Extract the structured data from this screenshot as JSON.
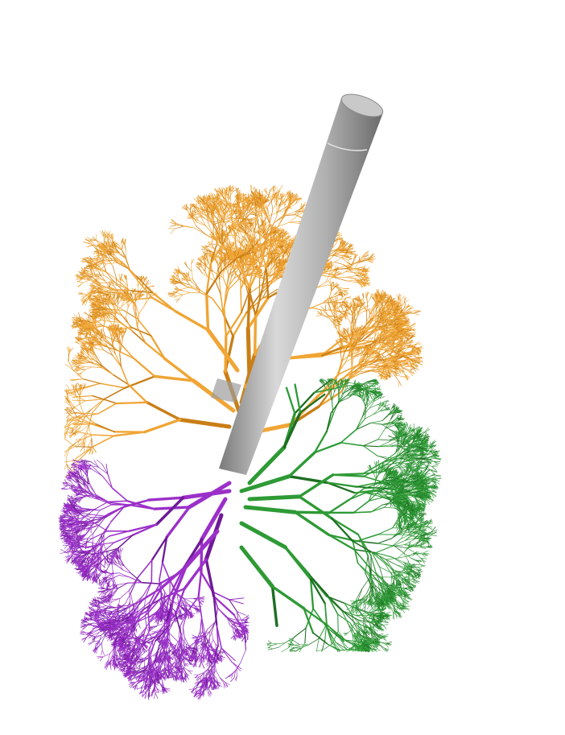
{
  "image": {
    "background": "#ffffff",
    "subject": "vascular-tree-render",
    "trunk": {
      "color_light": "#d9d9d9",
      "color_mid": "#a6a6a6",
      "color_dark": "#6e6e6e"
    },
    "lobes": [
      {
        "id": "upper",
        "color": "#f0a535",
        "shade": "#c97e16"
      },
      {
        "id": "lower-left",
        "color": "#9b30c9",
        "shade": "#6f1a97"
      },
      {
        "id": "lower-right",
        "color": "#2e9a35",
        "shade": "#1d6e22"
      }
    ]
  }
}
